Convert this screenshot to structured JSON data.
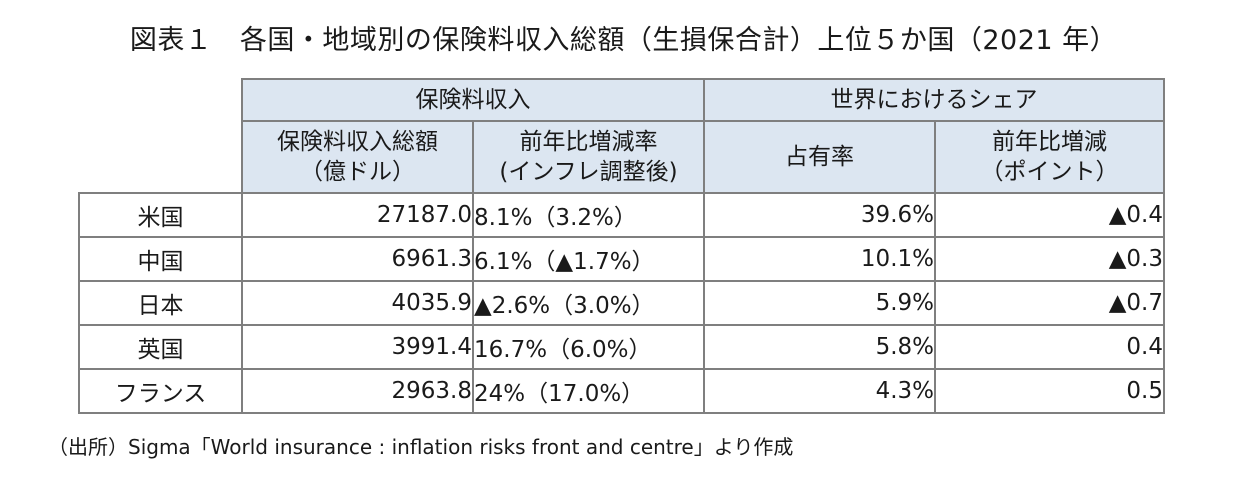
{
  "title": "図表１　各国・地域別の保険料収入総額（生損保合計）上位５か国（2021 年）",
  "header": {
    "group_premium": "保険料収入",
    "group_share": "世界におけるシェア",
    "col_total_line1": "保険料収入総額",
    "col_total_line2": "（億ドル）",
    "col_growth_line1": "前年比増減率",
    "col_growth_line2": "(インフレ調整後)",
    "col_share": "占有率",
    "col_share_change_line1": "前年比増減",
    "col_share_change_line2": "（ポイント）"
  },
  "rows": [
    {
      "country": "米国",
      "total": "27187.0",
      "growth": "8.1%（3.2%）",
      "share": "39.6%",
      "share_change": "▲0.4"
    },
    {
      "country": "中国",
      "total": "6961.3",
      "growth": "6.1%（▲1.7%）",
      "share": "10.1%",
      "share_change": "▲0.3"
    },
    {
      "country": "日本",
      "total": "4035.9",
      "growth": "▲2.6%（3.0%）",
      "share": "5.9%",
      "share_change": "▲0.7"
    },
    {
      "country": "英国",
      "total": "3991.4",
      "growth": "16.7%（6.0%）",
      "share": "5.8%",
      "share_change": "0.4"
    },
    {
      "country": "フランス",
      "total": "2963.8",
      "growth": "24%（17.0%）",
      "share": "4.3%",
      "share_change": "0.5"
    }
  ],
  "source": "（出所）Sigma「World insurance : inflation risks front and centre」より作成"
}
